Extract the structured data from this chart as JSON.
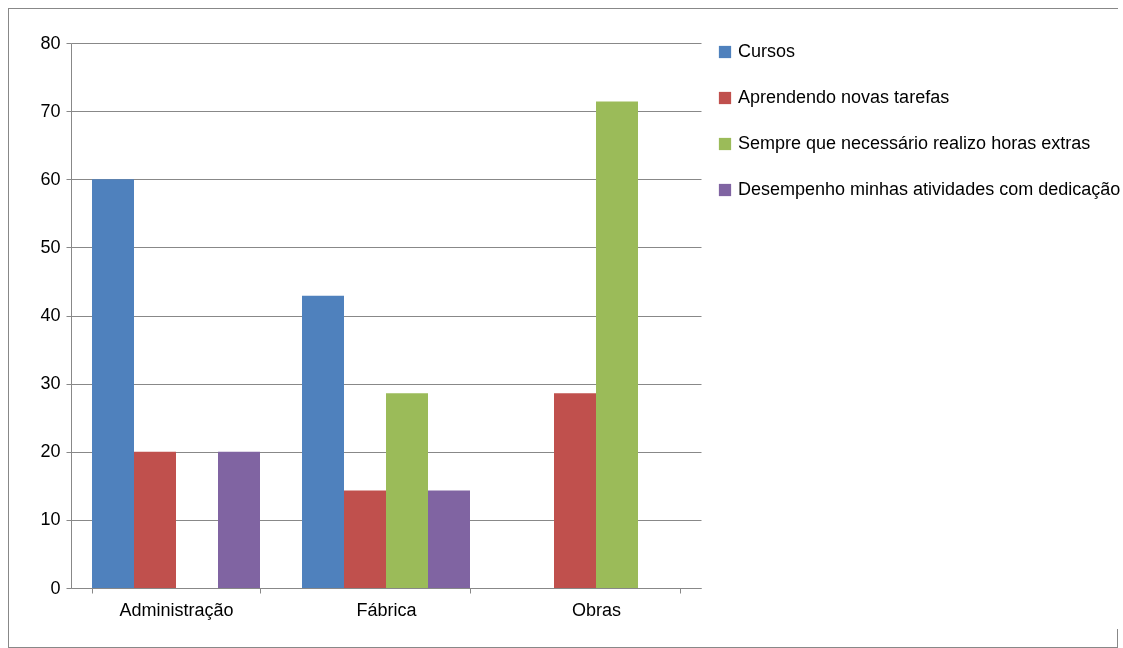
{
  "chart_data": {
    "type": "bar",
    "categories": [
      "Administração",
      "Fábrica",
      "Obras"
    ],
    "series": [
      {
        "name": "Cursos",
        "color": "#4f81bd",
        "values": [
          60,
          42.9,
          0
        ]
      },
      {
        "name": "Aprendendo novas tarefas",
        "color": "#c0504d",
        "values": [
          20,
          14.3,
          28.6
        ]
      },
      {
        "name": "Sempre que necessário realizo horas extras",
        "color": "#9bbb59",
        "values": [
          0,
          28.6,
          71.4
        ]
      },
      {
        "name": "Desempenho minhas atividades com dedicação",
        "color": "#8064a2",
        "values": [
          20,
          14.3,
          0
        ]
      }
    ],
    "ylim": [
      0,
      80
    ],
    "yticks": [
      0,
      10,
      20,
      30,
      40,
      50,
      60,
      70,
      80
    ],
    "grid": "y",
    "legend": "right"
  }
}
